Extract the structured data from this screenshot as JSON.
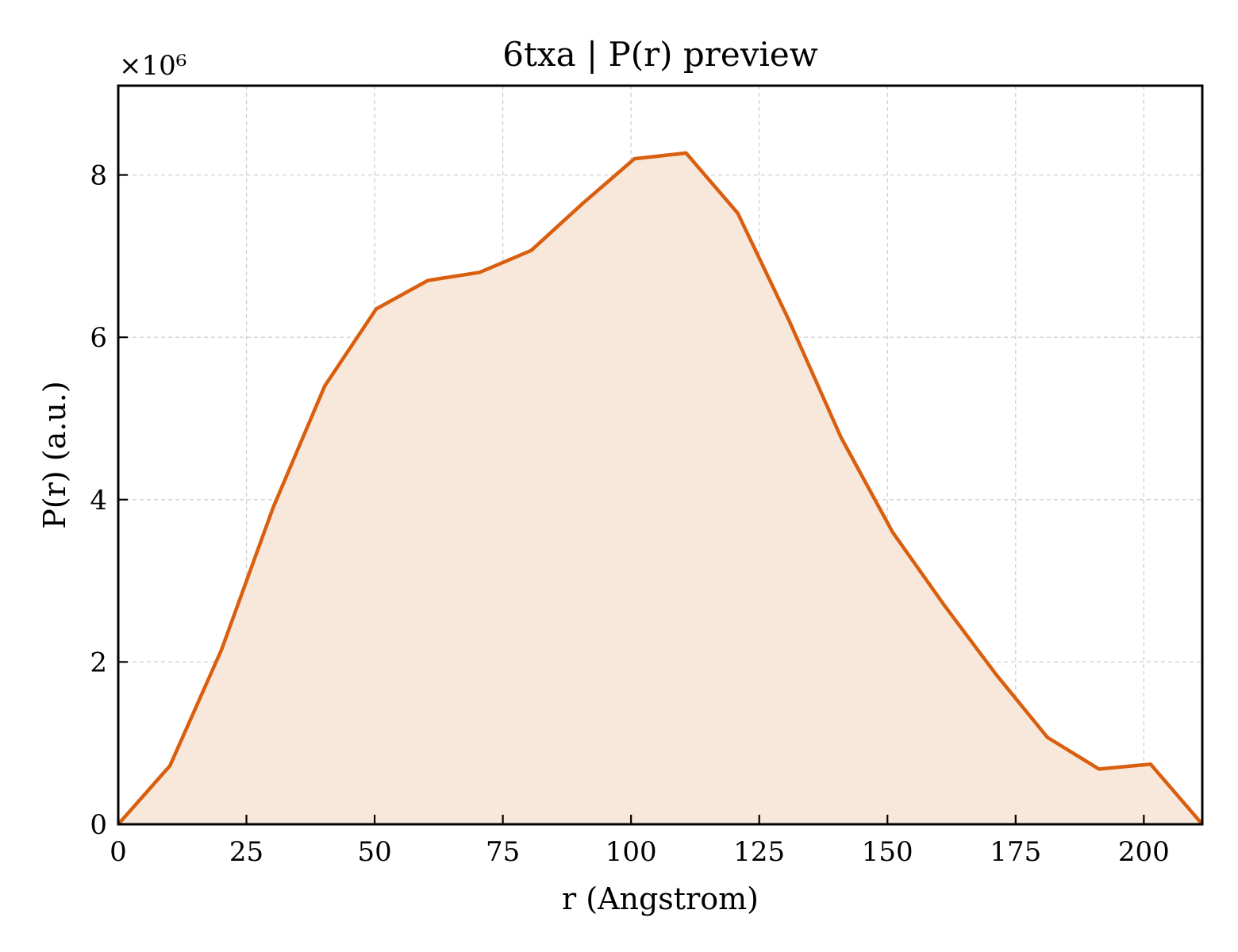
{
  "chart_data": {
    "type": "area",
    "title": "6txa | P(r) preview",
    "xlabel": "r (Angstrom)",
    "ylabel": "P(r) (a.u.)",
    "y_multiplier_label": "×10⁶",
    "xlim": [
      0,
      211.4
    ],
    "ylim": [
      0,
      9.1
    ],
    "x_ticks": [
      0,
      25,
      50,
      75,
      100,
      125,
      150,
      175,
      200
    ],
    "y_ticks": [
      0,
      2,
      4,
      6,
      8
    ],
    "grid": true,
    "tick_direction": "in",
    "line_color": "#d95f0e",
    "fill_color": "#f8e7db",
    "series": [
      {
        "x": [
          0,
          10.07,
          20.13,
          30.2,
          40.27,
          50.33,
          60.4,
          70.47,
          80.53,
          90.6,
          100.67,
          110.73,
          120.8,
          130.87,
          140.93,
          151.0,
          161.07,
          171.13,
          181.2,
          191.27,
          201.33,
          211.4
        ],
        "y": [
          0,
          0.72,
          2.15,
          3.9,
          5.4,
          6.35,
          6.7,
          6.8,
          7.07,
          7.65,
          8.2,
          8.27,
          7.53,
          6.2,
          4.77,
          3.6,
          2.7,
          1.85,
          1.07,
          0.68,
          0.74,
          0
        ]
      }
    ]
  }
}
